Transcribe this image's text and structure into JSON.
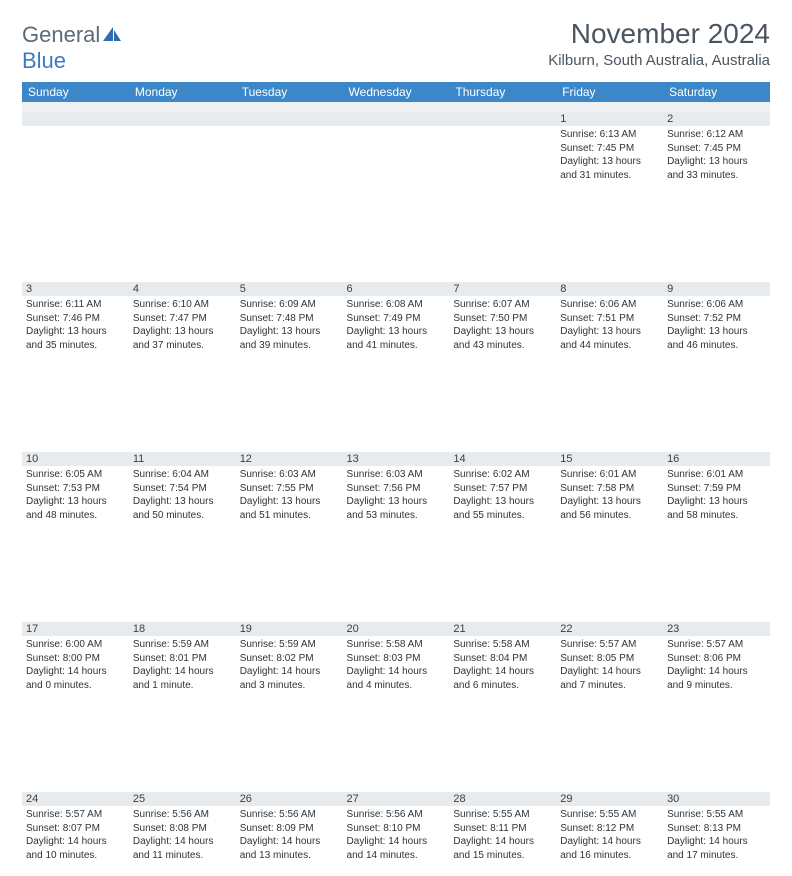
{
  "logo": {
    "general": "General",
    "blue": "Blue"
  },
  "title": "November 2024",
  "location": "Kilburn, South Australia, Australia",
  "colors": {
    "header_bg": "#3b87c8",
    "header_text": "#ffffff",
    "daynum_bg": "#e8ebed",
    "spacer_bg": "#eef0f2",
    "logo_gray": "#5a6b7a",
    "logo_blue": "#3b7bc4",
    "title_color": "#4a5560"
  },
  "day_headers": [
    "Sunday",
    "Monday",
    "Tuesday",
    "Wednesday",
    "Thursday",
    "Friday",
    "Saturday"
  ],
  "weeks": [
    [
      null,
      null,
      null,
      null,
      null,
      {
        "n": "1",
        "sr": "6:13 AM",
        "ss": "7:45 PM",
        "dl": "13 hours and 31 minutes."
      },
      {
        "n": "2",
        "sr": "6:12 AM",
        "ss": "7:45 PM",
        "dl": "13 hours and 33 minutes."
      }
    ],
    [
      {
        "n": "3",
        "sr": "6:11 AM",
        "ss": "7:46 PM",
        "dl": "13 hours and 35 minutes."
      },
      {
        "n": "4",
        "sr": "6:10 AM",
        "ss": "7:47 PM",
        "dl": "13 hours and 37 minutes."
      },
      {
        "n": "5",
        "sr": "6:09 AM",
        "ss": "7:48 PM",
        "dl": "13 hours and 39 minutes."
      },
      {
        "n": "6",
        "sr": "6:08 AM",
        "ss": "7:49 PM",
        "dl": "13 hours and 41 minutes."
      },
      {
        "n": "7",
        "sr": "6:07 AM",
        "ss": "7:50 PM",
        "dl": "13 hours and 43 minutes."
      },
      {
        "n": "8",
        "sr": "6:06 AM",
        "ss": "7:51 PM",
        "dl": "13 hours and 44 minutes."
      },
      {
        "n": "9",
        "sr": "6:06 AM",
        "ss": "7:52 PM",
        "dl": "13 hours and 46 minutes."
      }
    ],
    [
      {
        "n": "10",
        "sr": "6:05 AM",
        "ss": "7:53 PM",
        "dl": "13 hours and 48 minutes."
      },
      {
        "n": "11",
        "sr": "6:04 AM",
        "ss": "7:54 PM",
        "dl": "13 hours and 50 minutes."
      },
      {
        "n": "12",
        "sr": "6:03 AM",
        "ss": "7:55 PM",
        "dl": "13 hours and 51 minutes."
      },
      {
        "n": "13",
        "sr": "6:03 AM",
        "ss": "7:56 PM",
        "dl": "13 hours and 53 minutes."
      },
      {
        "n": "14",
        "sr": "6:02 AM",
        "ss": "7:57 PM",
        "dl": "13 hours and 55 minutes."
      },
      {
        "n": "15",
        "sr": "6:01 AM",
        "ss": "7:58 PM",
        "dl": "13 hours and 56 minutes."
      },
      {
        "n": "16",
        "sr": "6:01 AM",
        "ss": "7:59 PM",
        "dl": "13 hours and 58 minutes."
      }
    ],
    [
      {
        "n": "17",
        "sr": "6:00 AM",
        "ss": "8:00 PM",
        "dl": "14 hours and 0 minutes."
      },
      {
        "n": "18",
        "sr": "5:59 AM",
        "ss": "8:01 PM",
        "dl": "14 hours and 1 minute."
      },
      {
        "n": "19",
        "sr": "5:59 AM",
        "ss": "8:02 PM",
        "dl": "14 hours and 3 minutes."
      },
      {
        "n": "20",
        "sr": "5:58 AM",
        "ss": "8:03 PM",
        "dl": "14 hours and 4 minutes."
      },
      {
        "n": "21",
        "sr": "5:58 AM",
        "ss": "8:04 PM",
        "dl": "14 hours and 6 minutes."
      },
      {
        "n": "22",
        "sr": "5:57 AM",
        "ss": "8:05 PM",
        "dl": "14 hours and 7 minutes."
      },
      {
        "n": "23",
        "sr": "5:57 AM",
        "ss": "8:06 PM",
        "dl": "14 hours and 9 minutes."
      }
    ],
    [
      {
        "n": "24",
        "sr": "5:57 AM",
        "ss": "8:07 PM",
        "dl": "14 hours and 10 minutes."
      },
      {
        "n": "25",
        "sr": "5:56 AM",
        "ss": "8:08 PM",
        "dl": "14 hours and 11 minutes."
      },
      {
        "n": "26",
        "sr": "5:56 AM",
        "ss": "8:09 PM",
        "dl": "14 hours and 13 minutes."
      },
      {
        "n": "27",
        "sr": "5:56 AM",
        "ss": "8:10 PM",
        "dl": "14 hours and 14 minutes."
      },
      {
        "n": "28",
        "sr": "5:55 AM",
        "ss": "8:11 PM",
        "dl": "14 hours and 15 minutes."
      },
      {
        "n": "29",
        "sr": "5:55 AM",
        "ss": "8:12 PM",
        "dl": "14 hours and 16 minutes."
      },
      {
        "n": "30",
        "sr": "5:55 AM",
        "ss": "8:13 PM",
        "dl": "14 hours and 17 minutes."
      }
    ]
  ],
  "labels": {
    "sunrise": "Sunrise:",
    "sunset": "Sunset:",
    "daylight": "Daylight:"
  }
}
